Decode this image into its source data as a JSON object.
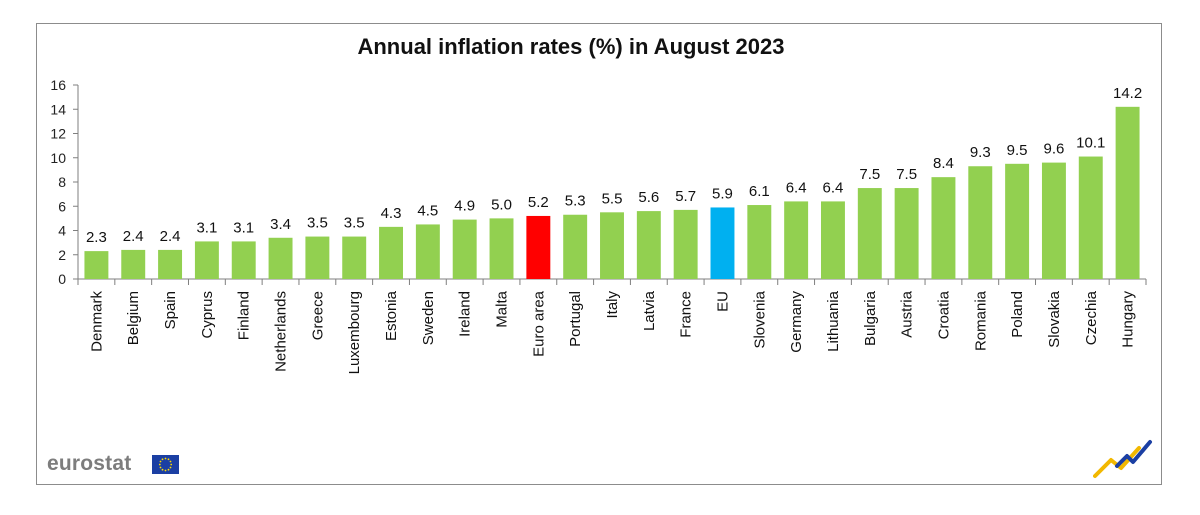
{
  "chart_data": {
    "type": "bar",
    "title": "Annual inflation rates (%) in August 2023",
    "xlabel": "",
    "ylabel": "",
    "ylim": [
      0,
      16
    ],
    "yticks": [
      0,
      2,
      4,
      6,
      8,
      10,
      12,
      14,
      16
    ],
    "categories": [
      "Denmark",
      "Belgium",
      "Spain",
      "Cyprus",
      "Finland",
      "Netherlands",
      "Greece",
      "Luxembourg",
      "Estonia",
      "Sweden",
      "Ireland",
      "Malta",
      "Euro area",
      "Portugal",
      "Italy",
      "Latvia",
      "France",
      "EU",
      "Slovenia",
      "Germany",
      "Lithuania",
      "Bulgaria",
      "Austria",
      "Croatia",
      "Romania",
      "Poland",
      "Slovakia",
      "Czechia",
      "Hungary"
    ],
    "values": [
      2.3,
      2.4,
      2.4,
      3.1,
      3.1,
      3.4,
      3.5,
      3.5,
      4.3,
      4.5,
      4.9,
      5.0,
      5.2,
      5.3,
      5.5,
      5.6,
      5.7,
      5.9,
      6.1,
      6.4,
      6.4,
      7.5,
      7.5,
      8.4,
      9.3,
      9.5,
      9.6,
      10.1,
      14.2
    ],
    "value_labels": [
      "2.3",
      "2.4",
      "2.4",
      "3.1",
      "3.1",
      "3.4",
      "3.5",
      "3.5",
      "4.3",
      "4.5",
      "4.9",
      "5.0",
      "5.2",
      "5.3",
      "5.5",
      "5.6",
      "5.7",
      "5.9",
      "6.1",
      "6.4",
      "6.4",
      "7.5",
      "7.5",
      "8.4",
      "9.3",
      "9.5",
      "9.6",
      "10.1",
      "14.2"
    ],
    "colors": {
      "default": "#92d050",
      "Euro area": "#ff0000",
      "EU": "#00b0f0"
    },
    "grid": false
  },
  "branding": {
    "logo_text": "eurostat",
    "flag_icon": "eu-flag-icon",
    "corner_icon": "eurostat-swoosh-icon"
  }
}
